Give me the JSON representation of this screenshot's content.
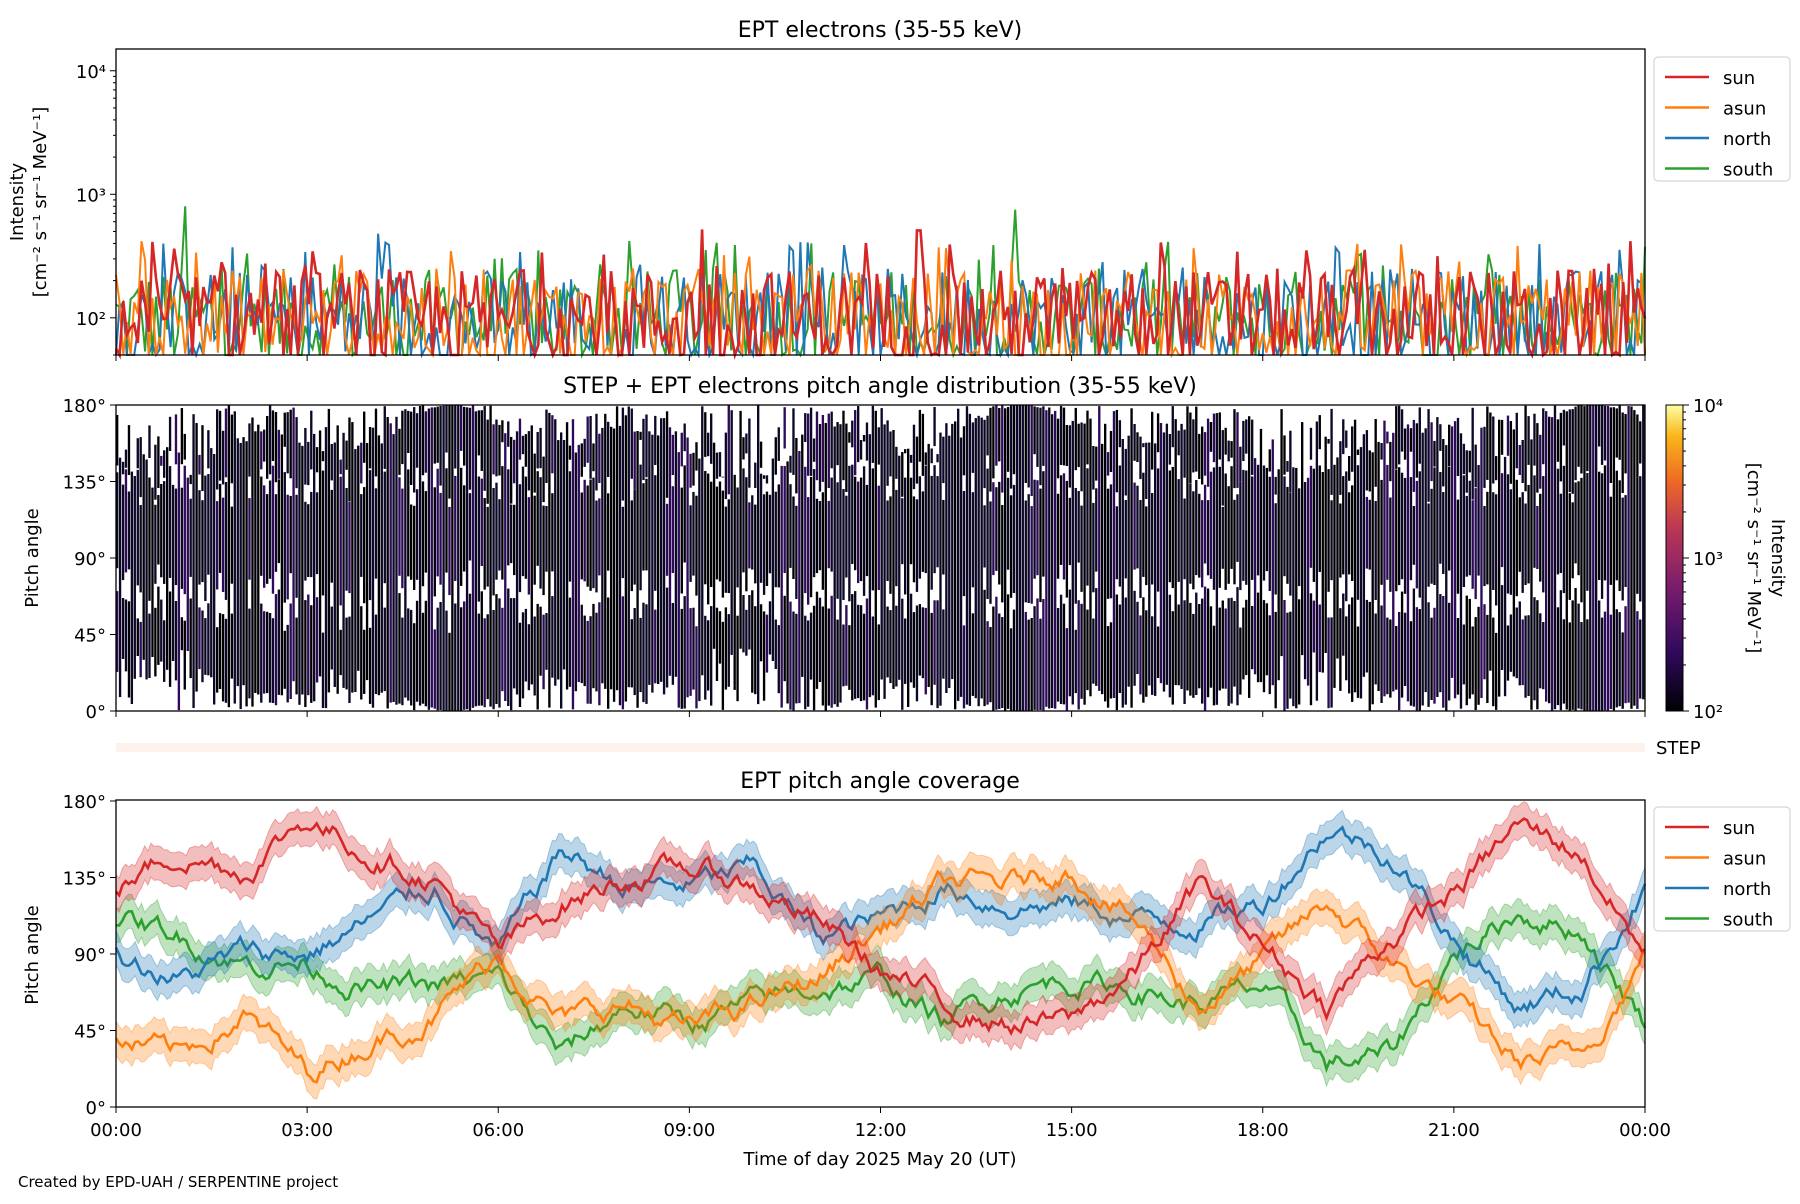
{
  "footer": "Created by EPD-UAH / SERPENTINE project",
  "colors": {
    "sun": "#d62728",
    "asun": "#ff7f0e",
    "north": "#1f77b4",
    "south": "#2ca02c",
    "step_bar": "#fdf3ec"
  },
  "step_label": "STEP",
  "chart_data": [
    {
      "type": "line",
      "title": "EPT electrons (35-55 keV)",
      "ylabel_line1": "Intensity",
      "ylabel_line2": "[cm⁻² s⁻¹ sr⁻¹ MeV⁻¹]",
      "yscale": "log",
      "ylim": [
        50,
        15000
      ],
      "yticks": [
        "10²",
        "10³",
        "10⁴"
      ],
      "ytick_values": [
        100,
        1000,
        10000
      ],
      "xlim_hours": [
        0,
        24
      ],
      "legend": [
        "sun",
        "asun",
        "north",
        "south"
      ],
      "legend_position": "outside-top-right",
      "typical_range": [
        50,
        450
      ],
      "notable_peaks": [
        {
          "series": "south",
          "time_h": 1.08,
          "value": 800
        },
        {
          "series": "south",
          "time_h": 14.1,
          "value": 750
        },
        {
          "series": "north",
          "time_h": 4.1,
          "value": 480
        },
        {
          "series": "sun",
          "time_h": 9.2,
          "value": 520
        },
        {
          "series": "sun",
          "time_h": 12.6,
          "value": 510
        }
      ]
    },
    {
      "type": "heatmap",
      "title": "STEP + EPT electrons pitch angle distribution (35-55 keV)",
      "ylabel": "Pitch angle",
      "yticks": [
        "0°",
        "45°",
        "90°",
        "135°",
        "180°"
      ],
      "ylim": [
        0,
        180
      ],
      "xlim_hours": [
        0,
        24
      ],
      "colorbar": {
        "label_line1": "Intensity",
        "label_line2": "[cm⁻² s⁻¹ sr⁻¹ MeV⁻¹]",
        "scale": "log",
        "range": [
          100,
          10000
        ],
        "ticks": [
          "10²",
          "10³",
          "10⁴"
        ],
        "colormap": "inferno"
      }
    },
    {
      "type": "line",
      "title": "EPT pitch angle coverage",
      "ylabel": "Pitch angle",
      "xlabel": "Time of day 2025 May 20 (UT)",
      "yticks": [
        "0°",
        "45°",
        "90°",
        "135°",
        "180°"
      ],
      "ylim": [
        0,
        180
      ],
      "xticks": [
        "00:00",
        "03:00",
        "06:00",
        "09:00",
        "12:00",
        "15:00",
        "18:00",
        "21:00",
        "00:00"
      ],
      "xlim_hours": [
        0,
        24
      ],
      "legend": [
        "sun",
        "asun",
        "north",
        "south"
      ],
      "legend_position": "outside-top-right",
      "x_hours": [
        0,
        1,
        2,
        3,
        4,
        5,
        6,
        7,
        8,
        9,
        10,
        11,
        12,
        13,
        14,
        15,
        16,
        17,
        18,
        19,
        20,
        21,
        22,
        23,
        24
      ],
      "series": [
        {
          "name": "sun",
          "values": [
            130,
            150,
            140,
            170,
            150,
            135,
            90,
            120,
            135,
            140,
            130,
            110,
            80,
            60,
            50,
            50,
            80,
            130,
            95,
            60,
            100,
            125,
            165,
            150,
            90
          ]
        },
        {
          "name": "asun",
          "values": [
            40,
            30,
            55,
            20,
            40,
            55,
            90,
            50,
            60,
            45,
            60,
            75,
            105,
            130,
            130,
            140,
            110,
            60,
            85,
            120,
            85,
            60,
            25,
            30,
            90
          ]
        },
        {
          "name": "north",
          "values": [
            90,
            75,
            90,
            90,
            110,
            130,
            90,
            150,
            130,
            130,
            140,
            100,
            110,
            130,
            120,
            120,
            110,
            110,
            120,
            165,
            150,
            100,
            60,
            70,
            130
          ]
        },
        {
          "name": "south",
          "values": [
            110,
            100,
            85,
            85,
            70,
            70,
            75,
            30,
            60,
            50,
            60,
            70,
            75,
            50,
            70,
            75,
            70,
            60,
            70,
            25,
            30,
            90,
            115,
            105,
            50
          ]
        }
      ],
      "band_halfwidth_deg": 10
    }
  ]
}
